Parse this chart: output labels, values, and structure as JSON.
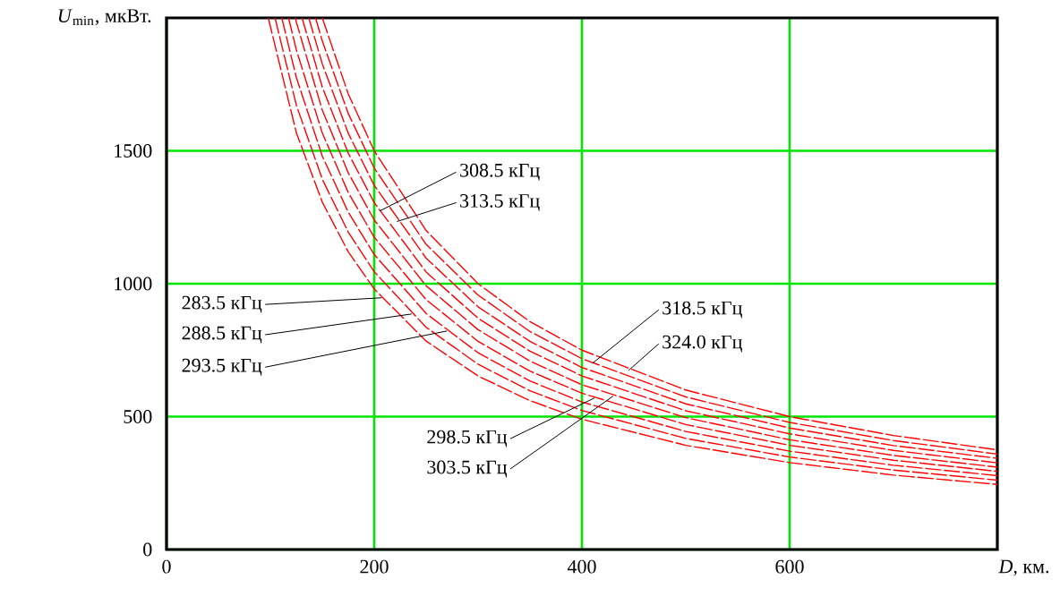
{
  "chart_data": {
    "type": "line",
    "xlabel": "*D*, км.",
    "ylabel": "*U*$_{min}$, мкВт.",
    "xlim": [
      0,
      800
    ],
    "ylim": [
      0,
      2000
    ],
    "xticks": [
      0,
      200,
      400,
      600
    ],
    "yticks": [
      0,
      500,
      1000,
      1500
    ],
    "grid": true,
    "line_style": "dashed",
    "marker": "none",
    "series": [
      {
        "color": "#ff0000",
        "x": [
          98,
          125,
          150,
          175,
          200,
          250,
          300,
          350,
          400,
          500,
          600,
          700,
          800
        ],
        "values": [
          2000,
          1568,
          1307,
          1120,
          980,
          784,
          653,
          560,
          490,
          392,
          327,
          280,
          245
        ]
      },
      {
        "color": "#ff0000",
        "x": [
          104.5,
          125,
          150,
          175,
          200,
          250,
          300,
          350,
          400,
          500,
          600,
          700,
          800
        ],
        "values": [
          2000,
          1672,
          1393,
          1194,
          1045,
          836,
          697,
          597,
          523,
          418,
          348,
          299,
          261
        ]
      },
      {
        "color": "#ff0000",
        "x": [
          111,
          125,
          150,
          175,
          200,
          250,
          300,
          350,
          400,
          500,
          600,
          700,
          800
        ],
        "values": [
          2000,
          1776,
          1480,
          1269,
          1110,
          888,
          740,
          634,
          555,
          444,
          370,
          317,
          278
        ]
      },
      {
        "color": "#ff0000",
        "x": [
          117.5,
          125,
          150,
          175,
          200,
          250,
          300,
          350,
          400,
          500,
          600,
          700,
          800
        ],
        "values": [
          2000,
          1880,
          1567,
          1343,
          1175,
          940,
          783,
          671,
          588,
          470,
          392,
          336,
          294
        ]
      },
      {
        "color": "#ff0000",
        "x": [
          124,
          125,
          150,
          175,
          200,
          250,
          300,
          350,
          400,
          500,
          600,
          700,
          800
        ],
        "values": [
          2000,
          1984,
          1653,
          1417,
          1240,
          992,
          827,
          709,
          620,
          496,
          413,
          354,
          310
        ]
      },
      {
        "color": "#ff0000",
        "x": [
          130.5,
          150,
          175,
          200,
          250,
          300,
          350,
          400,
          500,
          600,
          700,
          800
        ],
        "values": [
          2000,
          1740,
          1491,
          1305,
          1044,
          870,
          746,
          653,
          522,
          435,
          373,
          326
        ]
      },
      {
        "color": "#ff0000",
        "x": [
          137,
          150,
          175,
          200,
          250,
          300,
          350,
          400,
          500,
          600,
          700,
          800
        ],
        "values": [
          2000,
          1827,
          1566,
          1370,
          1096,
          913,
          783,
          685,
          548,
          457,
          391,
          343
        ]
      },
      {
        "color": "#ff0000",
        "x": [
          143.5,
          150,
          175,
          200,
          250,
          300,
          350,
          400,
          500,
          600,
          700,
          800
        ],
        "values": [
          2000,
          1913,
          1640,
          1435,
          1148,
          957,
          820,
          718,
          574,
          478,
          410,
          359
        ]
      },
      {
        "color": "#ff0000",
        "x": [
          150,
          175,
          200,
          250,
          300,
          350,
          400,
          500,
          600,
          700,
          800
        ],
        "values": [
          2000,
          1714,
          1500,
          1200,
          1000,
          857,
          750,
          600,
          500,
          429,
          375
        ]
      }
    ],
    "annotations": [
      {
        "text": "283.5 кГц",
        "x": 207,
        "y": 947
      },
      {
        "text": "288.5 кГц",
        "x": 236,
        "y": 886
      },
      {
        "text": "293.5 кГц",
        "x": 270,
        "y": 822
      },
      {
        "text": "298.5 кГц",
        "x": 412,
        "y": 570
      },
      {
        "text": "303.5 кГц",
        "x": 430,
        "y": 577
      },
      {
        "text": "308.5 кГц",
        "x": 205,
        "y": 1273
      },
      {
        "text": "313.5 кГц",
        "x": 222,
        "y": 1234
      },
      {
        "text": "318.5 кГц",
        "x": 410,
        "y": 700
      },
      {
        "text": "324.0 кГц",
        "x": 445,
        "y": 674
      }
    ]
  }
}
